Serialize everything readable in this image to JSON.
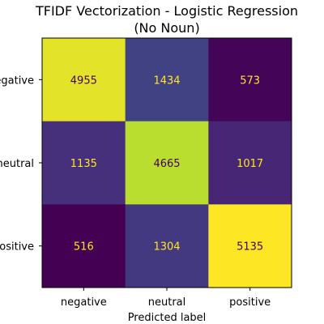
{
  "chart_data": {
    "type": "heatmap",
    "title_line1": "TFIDF Vectorization - Logistic Regression",
    "title_line2": "(No Noun)",
    "xlabel": "Predicted label",
    "ylabel": "",
    "x_categories": [
      "negative",
      "neutral",
      "positive"
    ],
    "y_categories": [
      "negative",
      "neutral",
      "positive"
    ],
    "values": [
      [
        4955,
        1434,
        573
      ],
      [
        1135,
        4665,
        1017
      ],
      [
        516,
        1304,
        5135
      ]
    ],
    "colormap": "viridis",
    "colors": {
      "dark_text": "#440154",
      "light_text": "#fde725"
    }
  }
}
